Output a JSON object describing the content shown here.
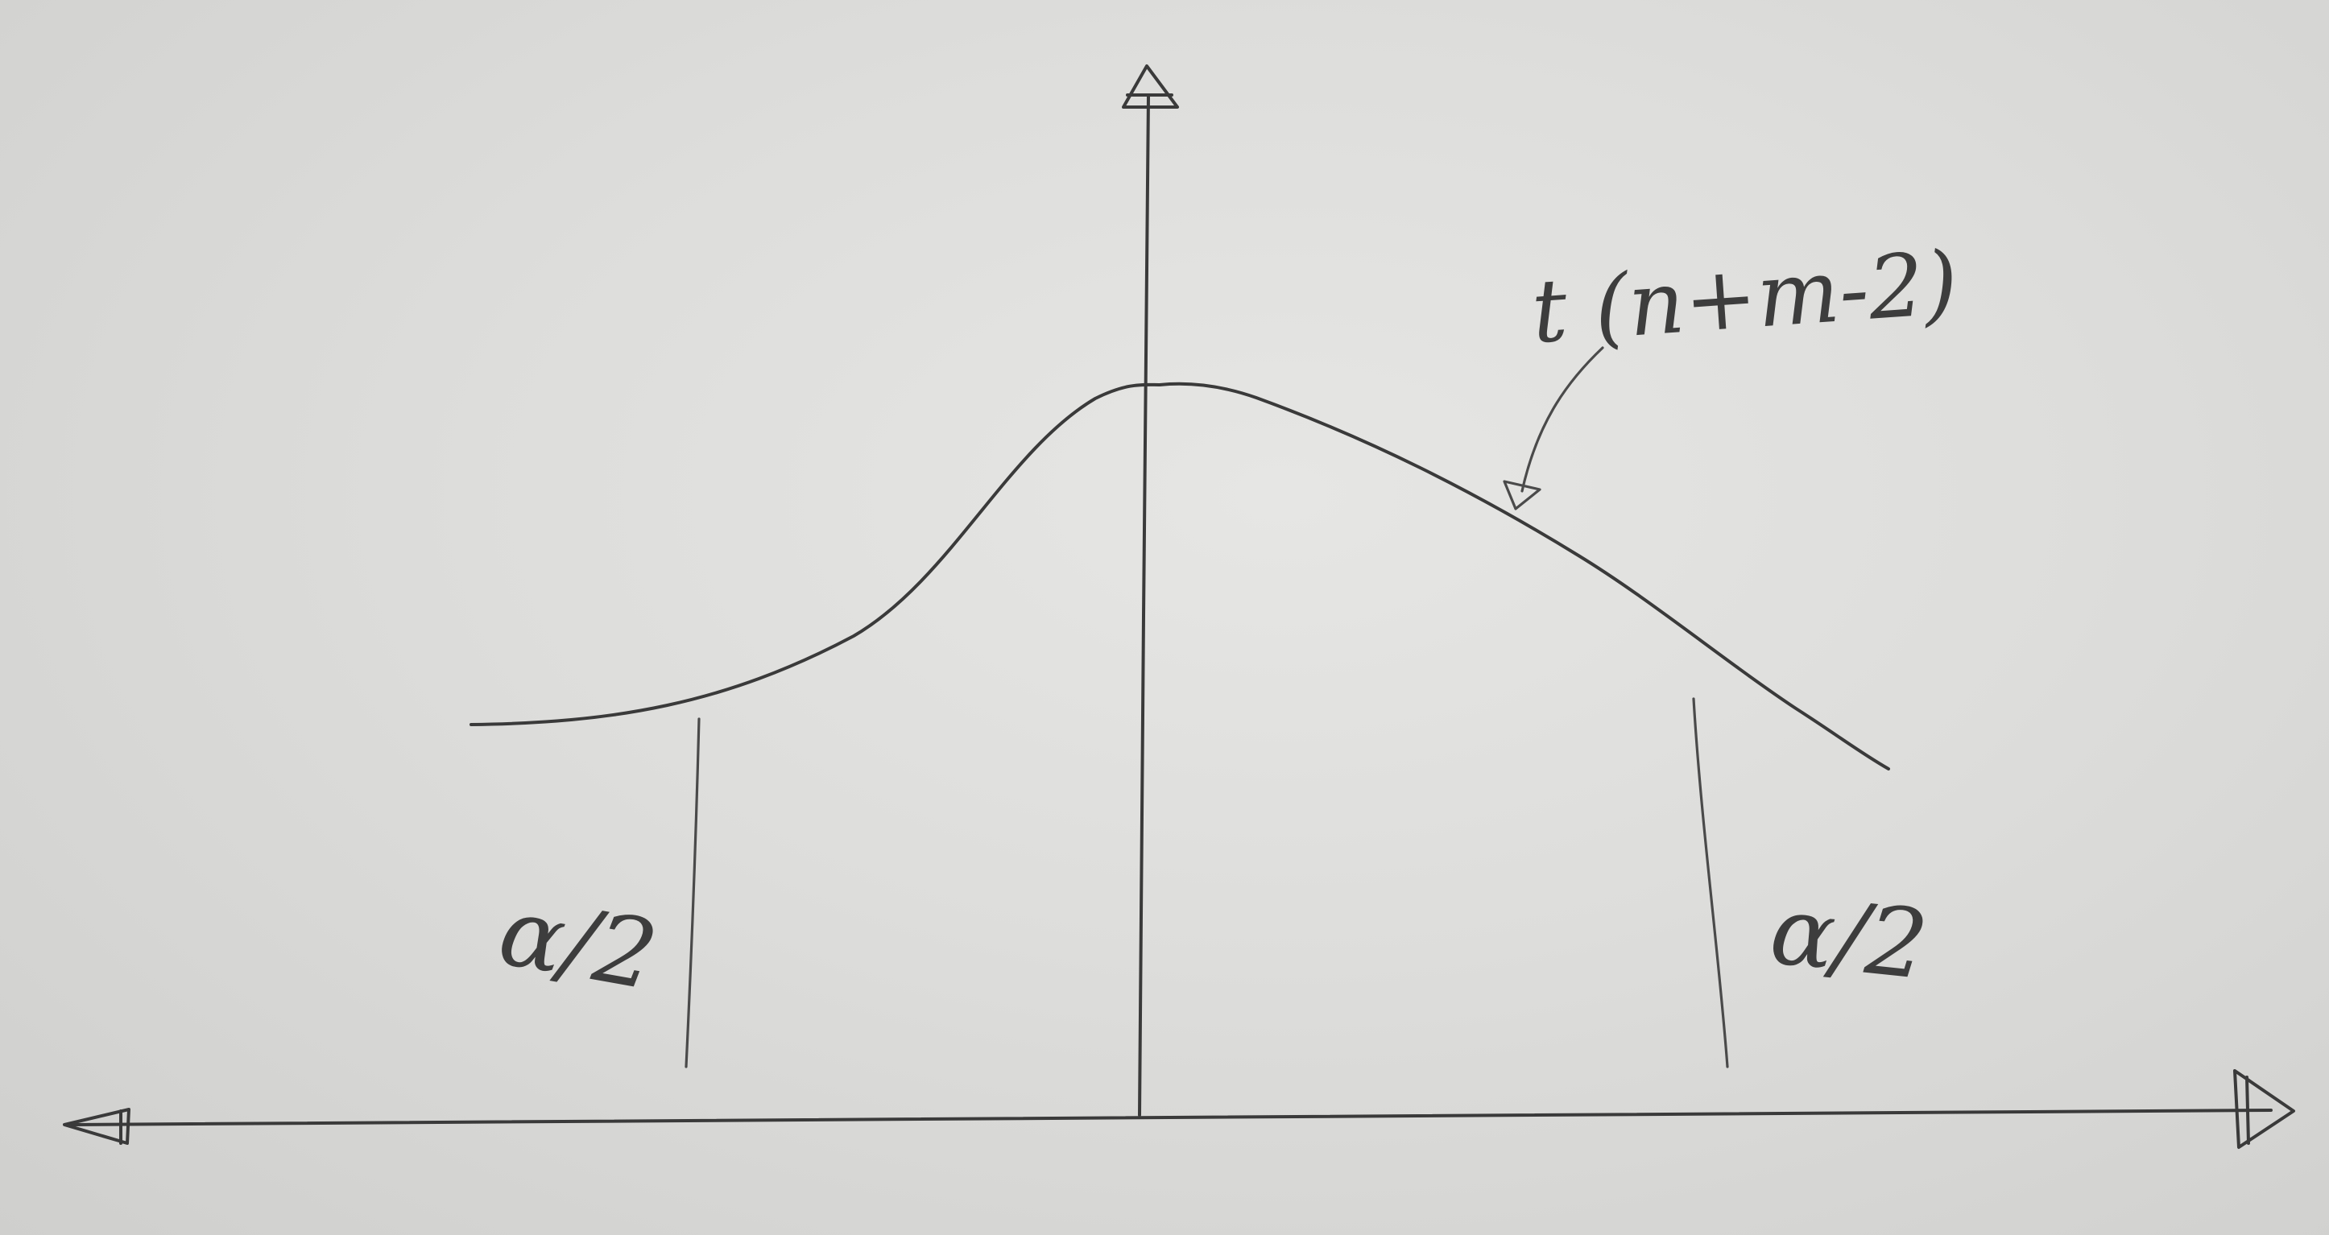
{
  "diagram": {
    "curve_label": "t (n+m-2)",
    "left_tail_label": "α/2",
    "right_tail_label": "α/2"
  }
}
